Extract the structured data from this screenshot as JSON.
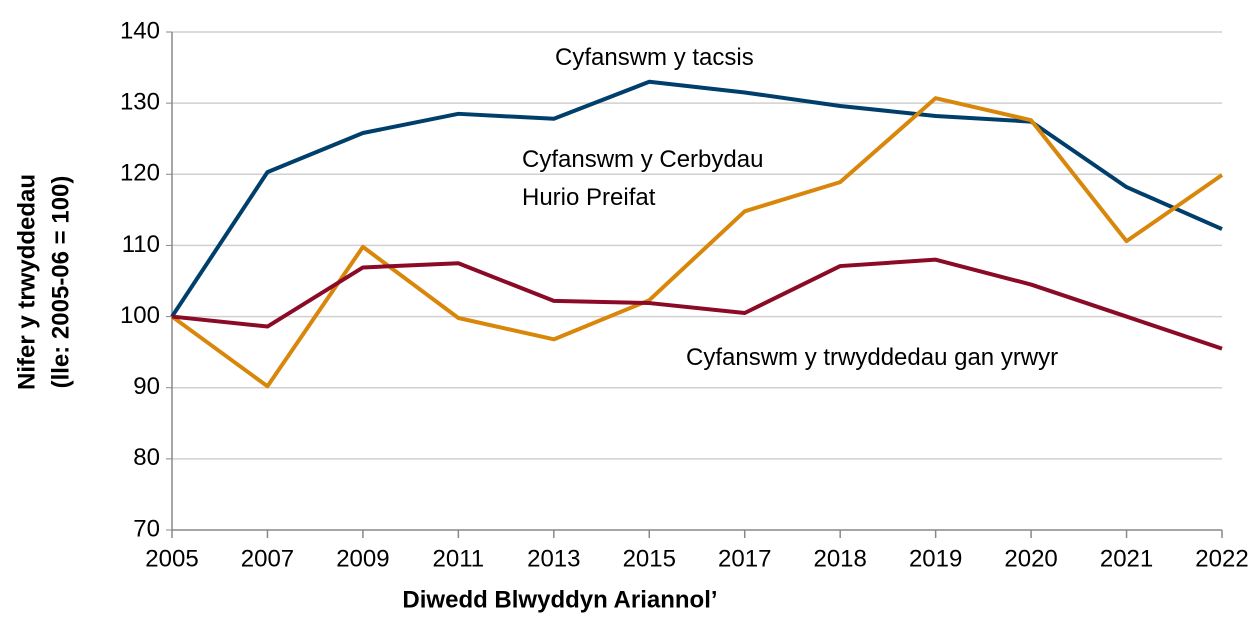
{
  "chart_data": {
    "type": "line",
    "categories": [
      "2005",
      "2007",
      "2009",
      "2011",
      "2013",
      "2015",
      "2017",
      "2018",
      "2019",
      "2020",
      "2021",
      "2022"
    ],
    "series": [
      {
        "name": "Cyfanswm y tacsis",
        "color": "#003f6b",
        "values": [
          100,
          120.3,
          125.8,
          128.5,
          127.8,
          133.0,
          131.5,
          129.6,
          128.2,
          127.4,
          118.2,
          112.3
        ]
      },
      {
        "name": "Cyfanswm y Cerbydau Hurio Preifat",
        "color": "#d9870b",
        "values": [
          100,
          90.2,
          109.8,
          99.8,
          96.8,
          102.3,
          114.8,
          118.9,
          130.7,
          127.6,
          110.6,
          119.9
        ]
      },
      {
        "name": "Cyfanswm y trwyddedau gan yrwyr",
        "color": "#8b0a26",
        "values": [
          100,
          98.6,
          106.9,
          107.5,
          102.2,
          101.9,
          100.5,
          107.1,
          108.0,
          104.5,
          100.0,
          95.5
        ]
      }
    ],
    "xlabel": "Diwedd Blwyddyn Ariannol’",
    "ylabel": [
      "Nifer y trwyddedau",
      "(lle: 2005-06 = 100)"
    ],
    "ylim": [
      70,
      140
    ],
    "yticks": [
      70,
      80,
      90,
      100,
      110,
      120,
      130,
      140
    ],
    "grid": true
  }
}
